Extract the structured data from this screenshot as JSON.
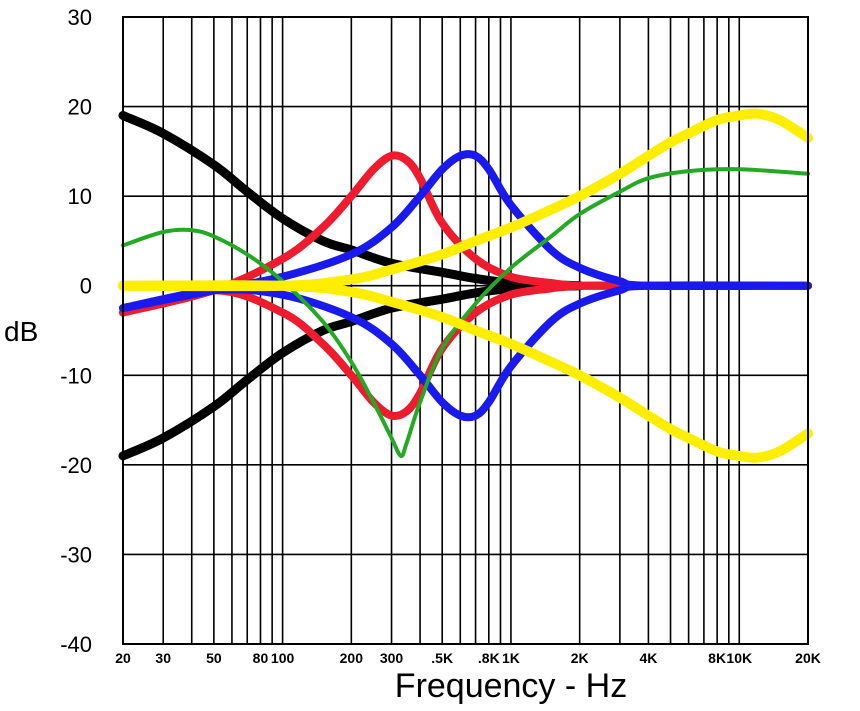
{
  "chart_data": {
    "type": "line",
    "title": "",
    "xlabel": "Frequency - Hz",
    "ylabel": "dB",
    "x_scale": "log",
    "xlim": [
      20,
      20000
    ],
    "ylim": [
      -40,
      30
    ],
    "grid": true,
    "y_ticks": [
      30,
      20,
      10,
      0,
      -10,
      -20,
      -30,
      -40
    ],
    "y_tick_labels": [
      "30",
      "20",
      "10",
      "0",
      "-10",
      "-20",
      "-30",
      "-40"
    ],
    "x_ticks": [
      20,
      30,
      50,
      80,
      100,
      200,
      300,
      500,
      800,
      1000,
      2000,
      4000,
      8000,
      10000,
      20000
    ],
    "x_tick_labels": [
      "20",
      "30",
      "50",
      "80",
      "100",
      "200",
      "300",
      ".5K",
      ".8K",
      "1K",
      "2K",
      "4K",
      "8K",
      "10K",
      "20K"
    ],
    "series": [
      {
        "color": "#000000",
        "width": 9,
        "x": [
          20,
          30,
          50,
          70,
          100,
          150,
          200,
          300,
          500,
          700,
          1000,
          1500,
          2000
        ],
        "y": [
          19,
          17,
          13.5,
          10.5,
          7.5,
          5,
          4,
          2.5,
          1.5,
          0.8,
          0.3,
          0.1,
          0
        ]
      },
      {
        "color": "#000000",
        "width": 9,
        "x": [
          20,
          30,
          50,
          70,
          100,
          150,
          200,
          300,
          500,
          700,
          1000,
          1500,
          2000
        ],
        "y": [
          -19,
          -17,
          -13.5,
          -10.5,
          -7.5,
          -5,
          -4,
          -2.5,
          -1.5,
          -0.8,
          -0.3,
          -0.1,
          0
        ]
      },
      {
        "color": "#ee1c2e",
        "width": 8,
        "x": [
          20,
          50,
          100,
          150,
          200,
          250,
          300,
          350,
          400,
          500,
          700,
          1000,
          1500,
          2000,
          4000,
          20000
        ],
        "y": [
          -3,
          -0.5,
          3,
          6.5,
          10,
          13,
          14.5,
          14,
          12,
          7,
          3,
          1,
          0.3,
          0,
          0,
          0
        ]
      },
      {
        "color": "#ee1c2e",
        "width": 8,
        "x": [
          20,
          50,
          100,
          150,
          200,
          250,
          300,
          350,
          400,
          500,
          700,
          1000,
          1500,
          2000,
          4000,
          20000
        ],
        "y": [
          -3,
          -0.5,
          -3,
          -6.5,
          -10,
          -13,
          -14.5,
          -14,
          -12,
          -7,
          -3,
          -1,
          -0.3,
          0,
          0,
          0
        ]
      },
      {
        "color": "#1a1aee",
        "width": 8,
        "x": [
          20,
          50,
          100,
          200,
          300,
          400,
          500,
          600,
          700,
          800,
          1000,
          1500,
          2000,
          3000,
          4000,
          20000
        ],
        "y": [
          -2.5,
          -0.5,
          1,
          3.5,
          6.5,
          10,
          13,
          14.5,
          14.5,
          13,
          9,
          4,
          2,
          0.5,
          0,
          0
        ]
      },
      {
        "color": "#1a1aee",
        "width": 8,
        "x": [
          20,
          50,
          100,
          200,
          300,
          400,
          500,
          600,
          700,
          800,
          1000,
          1500,
          2000,
          3000,
          4000,
          20000
        ],
        "y": [
          -2.5,
          -0.5,
          -1,
          -3.5,
          -6.5,
          -10,
          -13,
          -14.5,
          -14.5,
          -13,
          -9,
          -4,
          -2,
          -0.5,
          0,
          0
        ]
      },
      {
        "color": "#22aa22",
        "width": 4,
        "x": [
          20,
          30,
          40,
          50,
          70,
          100,
          150,
          200,
          250,
          300,
          330,
          350,
          400,
          500,
          700,
          1000,
          1500,
          2000,
          3000,
          4000,
          6000,
          10000,
          20000
        ],
        "y": [
          4.5,
          6,
          6.2,
          5.5,
          3.5,
          0.5,
          -4,
          -8.5,
          -13,
          -17,
          -19,
          -17.5,
          -13,
          -7,
          -2,
          2,
          5.5,
          8,
          10.5,
          12,
          12.8,
          13,
          12.5
        ]
      },
      {
        "color": "#ffee00",
        "width": 10,
        "x": [
          20,
          100,
          200,
          300,
          500,
          700,
          1000,
          1500,
          2000,
          3000,
          4000,
          5000,
          6000,
          8000,
          10000,
          12000,
          15000,
          20000
        ],
        "y": [
          0,
          0,
          0.7,
          1.8,
          3.5,
          5,
          6.5,
          8.5,
          10,
          12.5,
          14.5,
          16,
          17,
          18.5,
          19,
          19.2,
          18.5,
          16.5
        ]
      },
      {
        "color": "#ffee00",
        "width": 10,
        "x": [
          20,
          100,
          200,
          300,
          500,
          700,
          1000,
          1500,
          2000,
          3000,
          4000,
          5000,
          6000,
          8000,
          10000,
          12000,
          15000,
          20000
        ],
        "y": [
          0,
          0,
          -0.7,
          -1.8,
          -3.5,
          -5,
          -6.5,
          -8.5,
          -10,
          -12.5,
          -14.5,
          -16,
          -17,
          -18.5,
          -19,
          -19.2,
          -18.5,
          -16.5
        ]
      }
    ]
  }
}
